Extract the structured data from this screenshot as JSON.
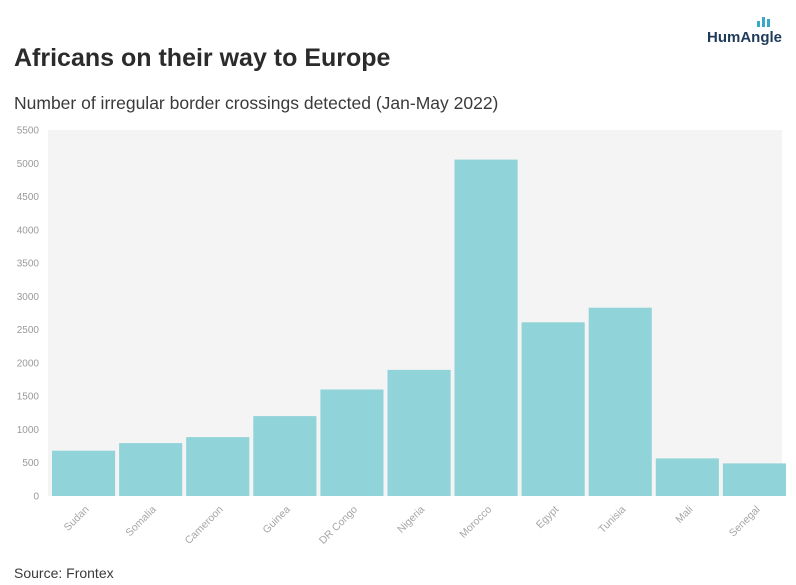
{
  "header": {
    "title": "Africans on their way to Europe",
    "subtitle": "Number of irregular border crossings detected (Jan-May 2022)"
  },
  "logo": {
    "text": "HumAngle"
  },
  "footer": {
    "source": "Source: Frontex"
  },
  "colors": {
    "bar": "#90d3d8",
    "plot_bg": "#f4f4f4",
    "logo_accent": "#3aa8c9"
  },
  "chart_data": {
    "type": "bar",
    "categories": [
      "Sudan",
      "Somalia",
      "Cameroon",
      "Guinea",
      "DR Congo",
      "Nigeria",
      "Morocco",
      "Egypt",
      "Tunisia",
      "Mali",
      "Senegal"
    ],
    "values": [
      680,
      795,
      885,
      1200,
      1600,
      1895,
      5055,
      2610,
      2830,
      565,
      490
    ],
    "yticks": [
      0,
      500,
      1000,
      1500,
      2000,
      2500,
      3000,
      3500,
      4000,
      4500,
      5000,
      5500
    ],
    "ylim": [
      0,
      5500
    ],
    "xlabel": "",
    "ylabel": "",
    "grid": false,
    "legend": "none"
  }
}
